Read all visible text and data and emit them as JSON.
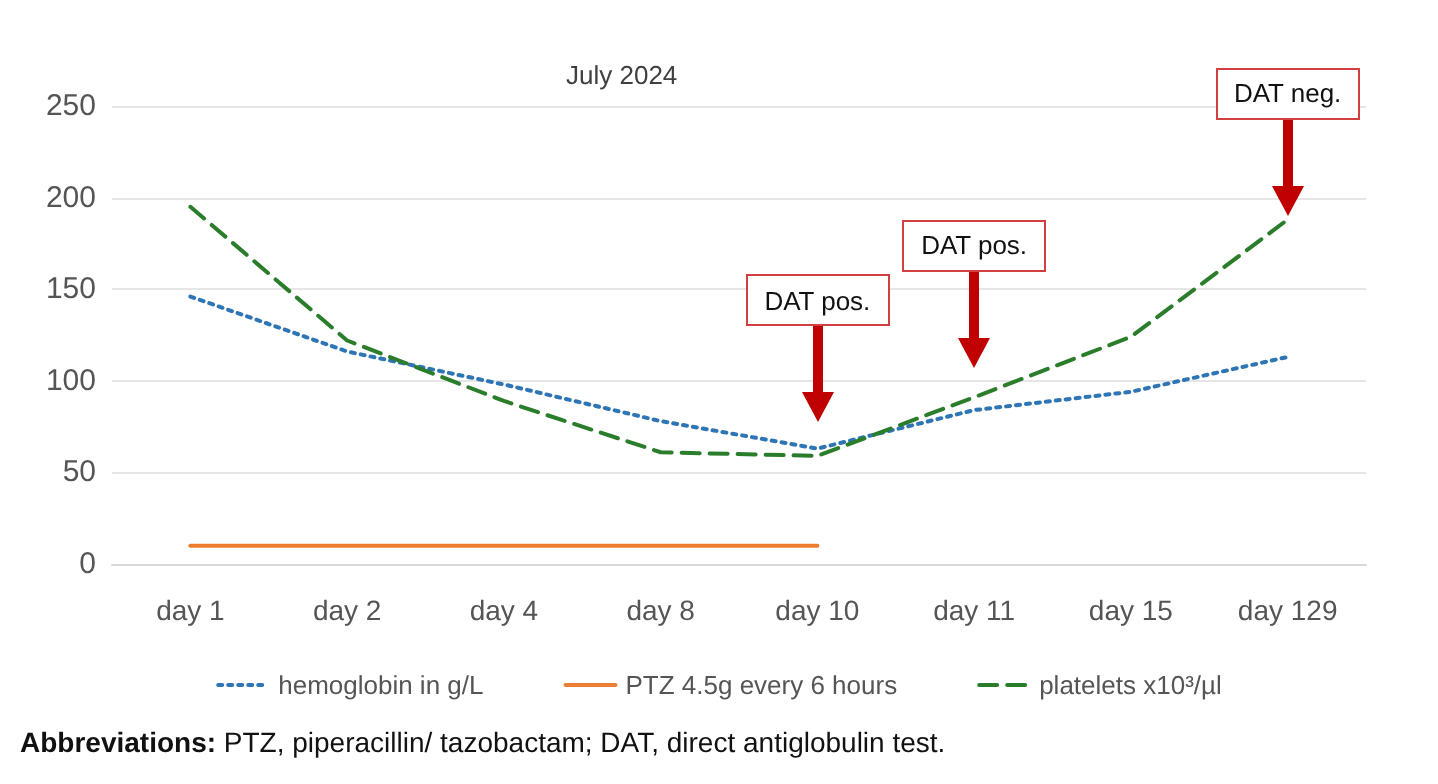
{
  "chart_data": {
    "type": "line",
    "title": "July 2024",
    "categories": [
      "day 1",
      "day 2",
      "day 4",
      "day 8",
      "day 10",
      "day 11",
      "day 15",
      "day 129"
    ],
    "series": [
      {
        "name": "hemoglobin in g/L",
        "color": "#2e75b6",
        "line_style": "dotted",
        "values": [
          146,
          116,
          98,
          78,
          63,
          84,
          94,
          113
        ]
      },
      {
        "name": "PTZ 4.5g every 6 hours",
        "color": "#ed7d31",
        "line_style": "solid",
        "values": [
          10,
          10,
          10,
          10,
          10,
          null,
          null,
          null
        ]
      },
      {
        "name": "platelets x10³/µl",
        "color": "#2a7d2a",
        "line_style": "dashed",
        "values": [
          195,
          122,
          89,
          61,
          59,
          91,
          124,
          188
        ]
      }
    ],
    "ylim": [
      0,
      250
    ],
    "yticks": [
      0,
      50,
      100,
      150,
      200,
      250
    ],
    "grid": "y",
    "legend": "bottom",
    "marker": "none",
    "annotations": [
      "DAT pos.",
      "DAT pos.",
      "DAT neg.",
      "Abbreviations: PTZ, piperacillin/ tazobactam; DAT, direct antiglobulin test."
    ]
  }
}
